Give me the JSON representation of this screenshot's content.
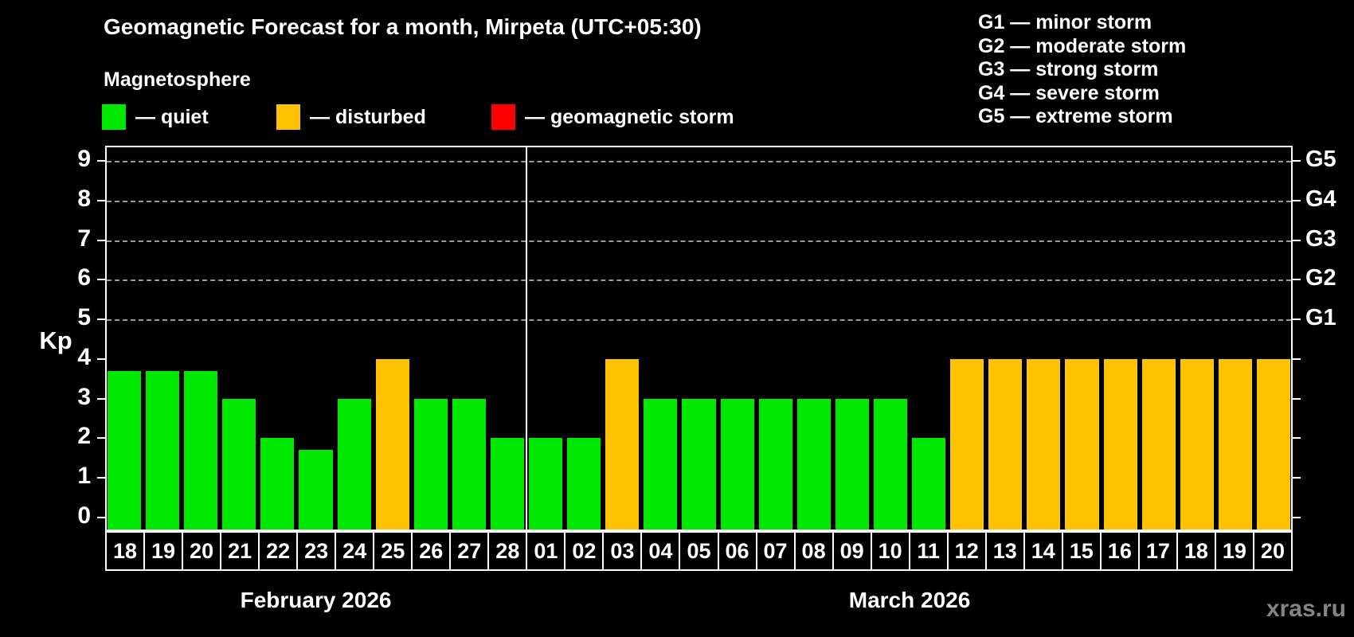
{
  "title": "Geomagnetic Forecast for a month, Mirpeta (UTC+05:30)",
  "subtitle": "Magnetosphere",
  "watermark": "xras.ru",
  "legend_items": [
    {
      "key": "quiet",
      "label": "— quiet",
      "color": "#00e800"
    },
    {
      "key": "disturbed",
      "label": "— disturbed",
      "color": "#ffc200"
    },
    {
      "key": "storm",
      "label": "— geomagnetic storm",
      "color": "#ff0000"
    }
  ],
  "storm_legend": [
    "G1 — minor storm",
    "G2 — moderate storm",
    "G3 — strong storm",
    "G4 — severe storm",
    "G5 — extreme storm"
  ],
  "chart_data": {
    "type": "bar",
    "title": "Geomagnetic Forecast for a month, Mirpeta (UTC+05:30)",
    "ylabel": "Kp",
    "ylim": [
      0,
      9
    ],
    "yticks": [
      "0",
      "1",
      "2",
      "3",
      "4",
      "5",
      "6",
      "7",
      "8",
      "9"
    ],
    "gridlines_kp": [
      5,
      6,
      7,
      8,
      9
    ],
    "grid_style": "dashed horizontal, Kp 5 through 9 only",
    "right_axis_labels": [
      {
        "label": "G1",
        "kp": 5
      },
      {
        "label": "G2",
        "kp": 6
      },
      {
        "label": "G3",
        "kp": 7
      },
      {
        "label": "G4",
        "kp": 8
      },
      {
        "label": "G5",
        "kp": 9
      }
    ],
    "months": [
      {
        "label": "February 2026",
        "days": [
          {
            "day": "18",
            "kp": 3.7,
            "condition": "quiet"
          },
          {
            "day": "19",
            "kp": 3.7,
            "condition": "quiet"
          },
          {
            "day": "20",
            "kp": 3.7,
            "condition": "quiet"
          },
          {
            "day": "21",
            "kp": 3.0,
            "condition": "quiet"
          },
          {
            "day": "22",
            "kp": 2.0,
            "condition": "quiet"
          },
          {
            "day": "23",
            "kp": 1.7,
            "condition": "quiet"
          },
          {
            "day": "24",
            "kp": 3.0,
            "condition": "quiet"
          },
          {
            "day": "25",
            "kp": 4.0,
            "condition": "disturbed"
          },
          {
            "day": "26",
            "kp": 3.0,
            "condition": "quiet"
          },
          {
            "day": "27",
            "kp": 3.0,
            "condition": "quiet"
          },
          {
            "day": "28",
            "kp": 2.0,
            "condition": "quiet"
          }
        ]
      },
      {
        "label": "March 2026",
        "days": [
          {
            "day": "01",
            "kp": 2.0,
            "condition": "quiet"
          },
          {
            "day": "02",
            "kp": 2.0,
            "condition": "quiet"
          },
          {
            "day": "03",
            "kp": 4.0,
            "condition": "disturbed"
          },
          {
            "day": "04",
            "kp": 3.0,
            "condition": "quiet"
          },
          {
            "day": "05",
            "kp": 3.0,
            "condition": "quiet"
          },
          {
            "day": "06",
            "kp": 3.0,
            "condition": "quiet"
          },
          {
            "day": "07",
            "kp": 3.0,
            "condition": "quiet"
          },
          {
            "day": "08",
            "kp": 3.0,
            "condition": "quiet"
          },
          {
            "day": "09",
            "kp": 3.0,
            "condition": "quiet"
          },
          {
            "day": "10",
            "kp": 3.0,
            "condition": "quiet"
          },
          {
            "day": "11",
            "kp": 2.0,
            "condition": "quiet"
          },
          {
            "day": "12",
            "kp": 4.0,
            "condition": "disturbed"
          },
          {
            "day": "13",
            "kp": 4.0,
            "condition": "disturbed"
          },
          {
            "day": "14",
            "kp": 4.0,
            "condition": "disturbed"
          },
          {
            "day": "15",
            "kp": 4.0,
            "condition": "disturbed"
          },
          {
            "day": "16",
            "kp": 4.0,
            "condition": "disturbed"
          },
          {
            "day": "17",
            "kp": 4.0,
            "condition": "disturbed"
          },
          {
            "day": "18",
            "kp": 4.0,
            "condition": "disturbed"
          },
          {
            "day": "19",
            "kp": 4.0,
            "condition": "disturbed"
          },
          {
            "day": "20",
            "kp": 4.0,
            "condition": "disturbed"
          }
        ]
      }
    ]
  }
}
